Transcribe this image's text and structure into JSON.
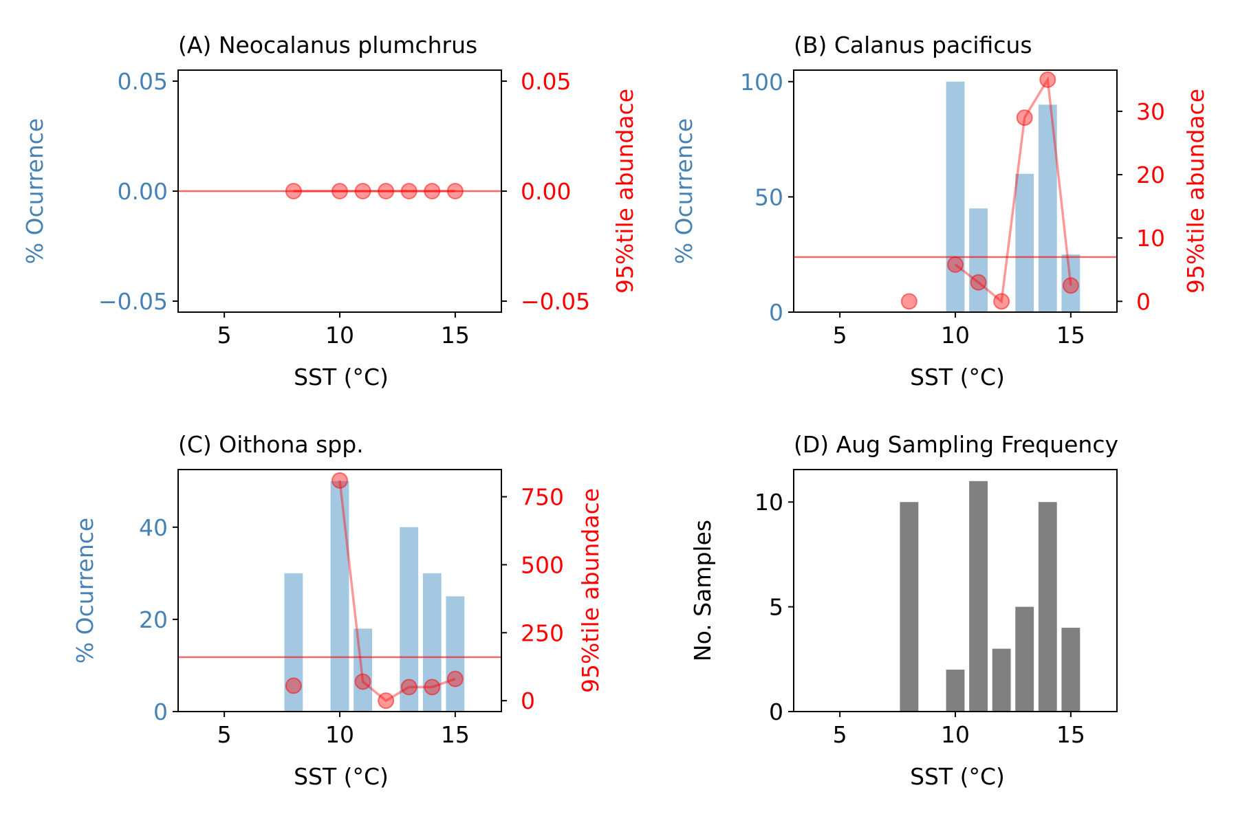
{
  "colors": {
    "occurrence": "#4682b4",
    "abundance": "#ff0000",
    "bar_blue": "#7fb0d6",
    "bar_gray": "#808080",
    "axis": "#000000"
  },
  "chart_data": [
    {
      "id": "A",
      "type": "bar",
      "title": "(A) Neocalanus plumchrus",
      "xlabel": "SST ($^\\circ$C)",
      "ylabel": "% Ocurrence",
      "ylabel_right": "95%tile abundace",
      "xlim": [
        3,
        17
      ],
      "ylim": [
        -0.055,
        0.055
      ],
      "ylim_right": [
        -0.055,
        0.055
      ],
      "x_ticks": [
        5,
        10,
        15
      ],
      "x_tick_labels": [
        "5",
        "10",
        "15"
      ],
      "y_ticks": [
        -0.05,
        0.0,
        0.05
      ],
      "y_tick_labels": [
        "−0.05",
        "0.00",
        "0.05"
      ],
      "y_right_ticks": [
        -0.05,
        0.0,
        0.05
      ],
      "y_right_tick_labels": [
        "−0.05",
        "0.00",
        "0.05"
      ],
      "occurrence": {
        "x": [
          8,
          10,
          11,
          12,
          13,
          14,
          15
        ],
        "values": [
          0,
          0,
          0,
          0,
          0,
          0,
          0
        ]
      },
      "abundance": {
        "x": [
          8,
          10,
          11,
          12,
          13,
          14,
          15
        ],
        "values": [
          0,
          0,
          0,
          0,
          0,
          0,
          0
        ]
      },
      "reference_line_right": 0.0
    },
    {
      "id": "B",
      "type": "bar",
      "title": "(B) Calanus pacificus",
      "xlabel": "SST ($^\\circ$C)",
      "ylabel": "% Ocurrence",
      "ylabel_right": "95%tile abundace",
      "xlim": [
        3,
        17
      ],
      "ylim": [
        0,
        105
      ],
      "ylim_right": [
        -1.7,
        36.5
      ],
      "x_ticks": [
        5,
        10,
        15
      ],
      "x_tick_labels": [
        "5",
        "10",
        "15"
      ],
      "y_ticks": [
        0,
        50,
        100
      ],
      "y_tick_labels": [
        "0",
        "50",
        "100"
      ],
      "y_right_ticks": [
        0,
        10,
        20,
        30
      ],
      "y_right_tick_labels": [
        "0",
        "10",
        "20",
        "30"
      ],
      "occurrence": {
        "x": [
          8,
          10,
          11,
          12,
          13,
          14,
          15
        ],
        "values": [
          0,
          100,
          45,
          0,
          60,
          90,
          25
        ]
      },
      "abundance": {
        "x": [
          8,
          10,
          11,
          12,
          13,
          14,
          15
        ],
        "values": [
          0,
          5.8,
          3,
          0,
          29,
          35,
          2.5
        ]
      },
      "reference_line_right": 7
    },
    {
      "id": "C",
      "type": "bar",
      "title": "(C) Oithona spp.",
      "xlabel": "SST ($^\\circ$C)",
      "ylabel": "% Ocurrence",
      "ylabel_right": "95%tile abundace",
      "xlim": [
        3,
        17
      ],
      "ylim": [
        0,
        52.5
      ],
      "ylim_right": [
        -40,
        850
      ],
      "x_ticks": [
        5,
        10,
        15
      ],
      "x_tick_labels": [
        "5",
        "10",
        "15"
      ],
      "y_ticks": [
        0,
        20,
        40
      ],
      "y_tick_labels": [
        "0",
        "20",
        "40"
      ],
      "y_right_ticks": [
        0,
        250,
        500,
        750
      ],
      "y_right_tick_labels": [
        "0",
        "250",
        "500",
        "750"
      ],
      "occurrence": {
        "x": [
          8,
          10,
          11,
          12,
          13,
          14,
          15
        ],
        "values": [
          30,
          50,
          18,
          0,
          40,
          30,
          25
        ]
      },
      "abundance": {
        "x": [
          8,
          10,
          11,
          12,
          13,
          14,
          15
        ],
        "values": [
          55,
          810,
          70,
          0,
          50,
          50,
          80
        ]
      },
      "reference_line_right": 160
    },
    {
      "id": "D",
      "type": "bar",
      "title": "(D) Aug Sampling Frequency",
      "xlabel": "SST ($^\\circ$C)",
      "ylabel": "No. Samples",
      "xlim": [
        3,
        17
      ],
      "ylim": [
        0,
        11.55
      ],
      "x_ticks": [
        5,
        10,
        15
      ],
      "x_tick_labels": [
        "5",
        "10",
        "15"
      ],
      "y_ticks": [
        0,
        5,
        10
      ],
      "y_tick_labels": [
        "0",
        "5",
        "10"
      ],
      "samples": {
        "x": [
          8,
          10,
          11,
          12,
          13,
          14,
          15
        ],
        "values": [
          10,
          2,
          11,
          3,
          5,
          10,
          4
        ]
      }
    }
  ]
}
